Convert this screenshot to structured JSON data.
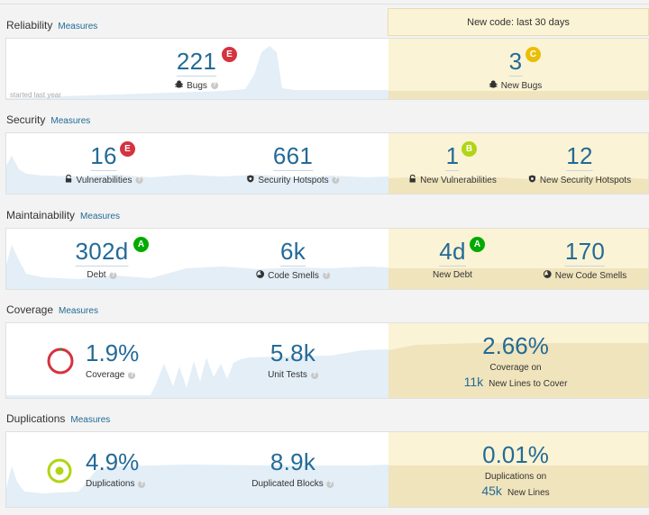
{
  "new_code_header": "New code: last 30 days",
  "measures_link": "Measures",
  "reliability": {
    "title": "Reliability",
    "started_label": "started last year",
    "bugs": {
      "value": "221",
      "rating": "E",
      "label": "Bugs",
      "icon": "bug-icon"
    },
    "new_bugs": {
      "value": "3",
      "rating": "C",
      "label": "New Bugs",
      "icon": "bug-icon"
    }
  },
  "security": {
    "title": "Security",
    "vulnerabilities": {
      "value": "16",
      "rating": "E",
      "label": "Vulnerabilities",
      "icon": "lock-icon"
    },
    "hotspots": {
      "value": "661",
      "label": "Security Hotspots",
      "icon": "shield-icon"
    },
    "new_vulnerabilities": {
      "value": "1",
      "rating": "B",
      "label": "New Vulnerabilities",
      "icon": "lock-icon"
    },
    "new_hotspots": {
      "value": "12",
      "label": "New Security Hotspots",
      "icon": "shield-icon"
    }
  },
  "maintainability": {
    "title": "Maintainability",
    "debt": {
      "value": "302d",
      "rating": "A",
      "label": "Debt"
    },
    "code_smells": {
      "value": "6k",
      "label": "Code Smells",
      "icon": "code-smell-icon"
    },
    "new_debt": {
      "value": "4d",
      "rating": "A",
      "label": "New Debt"
    },
    "new_code_smells": {
      "value": "170",
      "label": "New Code Smells",
      "icon": "code-smell-icon"
    }
  },
  "coverage": {
    "title": "Coverage",
    "coverage": {
      "value": "1.9%",
      "label": "Coverage",
      "percent": 1.9
    },
    "unit_tests": {
      "value": "5.8k",
      "label": "Unit Tests"
    },
    "new_coverage": {
      "value": "2.66%",
      "label": "Coverage on",
      "lines_value": "11k",
      "lines_label": "New Lines to Cover"
    }
  },
  "duplications": {
    "title": "Duplications",
    "duplications": {
      "value": "4.9%",
      "label": "Duplications"
    },
    "duplicated_blocks": {
      "value": "8.9k",
      "label": "Duplicated Blocks"
    },
    "new_duplications": {
      "value": "0.01%",
      "label": "Duplications on",
      "lines_value": "45k",
      "lines_label": "New Lines"
    }
  },
  "colors": {
    "link": "#236a97",
    "new_code_bg": "#fbf3d5",
    "rating_E": "#d4333f",
    "rating_C": "#eabe06",
    "rating_B": "#b0d513",
    "rating_A": "#00aa00",
    "chart_fill": "#e3eef7"
  }
}
